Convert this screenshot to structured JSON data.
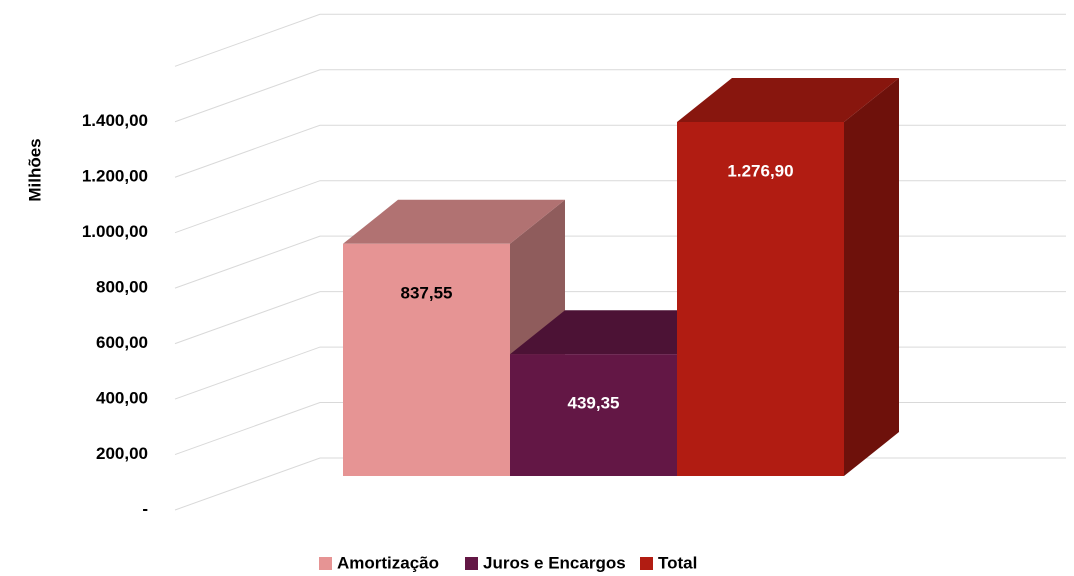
{
  "chart_data": {
    "type": "bar3d",
    "y_label": "Milhões",
    "series": [
      {
        "name": "Amortização",
        "color": "#e69494",
        "values": [
          837.55
        ],
        "value_labels": [
          "837,55"
        ]
      },
      {
        "name": "Juros e Encargos",
        "color": "#631745",
        "values": [
          439.35
        ],
        "value_labels": [
          "439,35"
        ]
      },
      {
        "name": "Total",
        "color": "#b11c12",
        "values": [
          1276.9
        ],
        "value_labels": [
          "1.276,90"
        ]
      }
    ],
    "ylim": [
      0,
      1600
    ],
    "yticks": [
      {
        "value": 0,
        "label": "-"
      },
      {
        "value": 200,
        "label": "200,00"
      },
      {
        "value": 400,
        "label": "400,00"
      },
      {
        "value": 600,
        "label": "600,00"
      },
      {
        "value": 800,
        "label": "800,00"
      },
      {
        "value": 1000,
        "label": "1.000,00"
      },
      {
        "value": 1200,
        "label": "1.200,00"
      },
      {
        "value": 1400,
        "label": "1.400,00"
      }
    ],
    "grid": true
  }
}
